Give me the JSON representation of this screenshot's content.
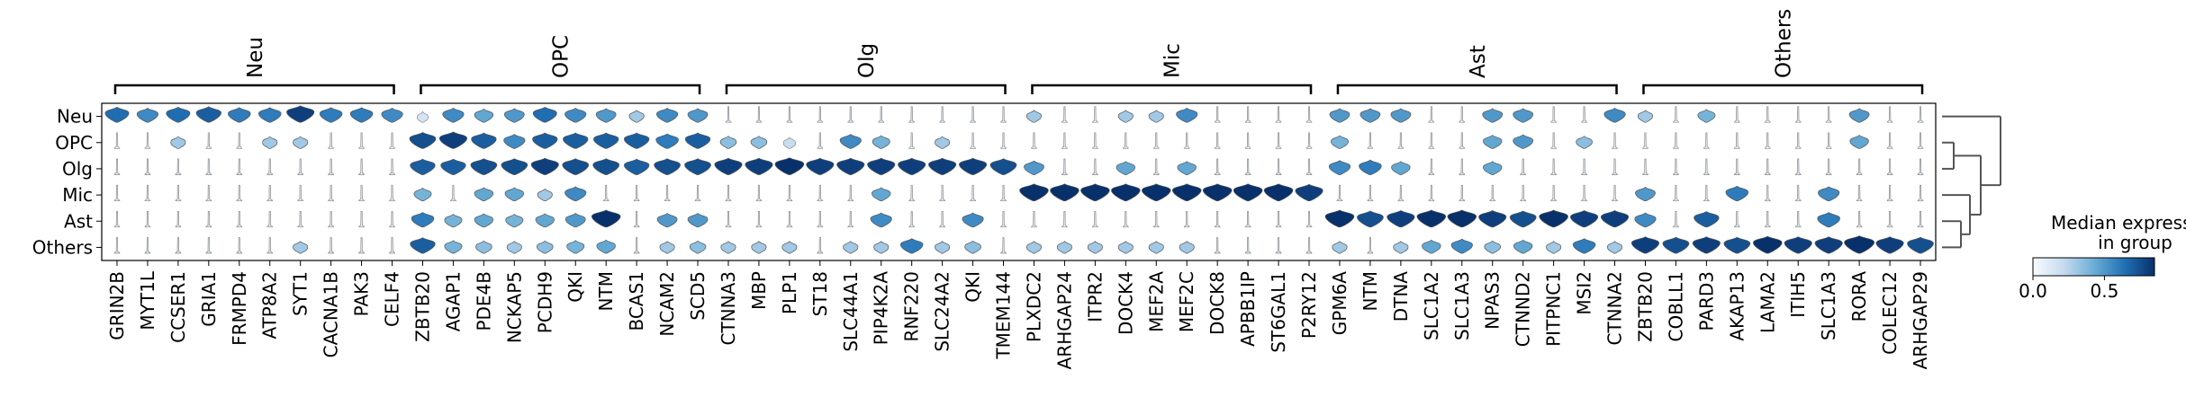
{
  "chart_data": {
    "type": "stacked violin plot",
    "row_labels": [
      "Neu",
      "OPC",
      "Olg",
      "Mic",
      "Ast",
      "Others"
    ],
    "groups": [
      {
        "name": "Neu",
        "genes": [
          "GRIN2B",
          "MYT1L",
          "CCSER1",
          "GRIA1",
          "FRMPD4",
          "ATP8A2",
          "SYT1",
          "CACNA1B",
          "PAK3",
          "CELF4"
        ]
      },
      {
        "name": "OPC",
        "genes": [
          "ZBTB20",
          "AGAP1",
          "PDE4B",
          "NCKAP5",
          "PCDH9",
          "QKI",
          "NTM",
          "BCAS1",
          "NCAM2",
          "SCD5"
        ]
      },
      {
        "name": "Olg",
        "genes": [
          "CTNNA3",
          "MBP",
          "PLP1",
          "ST18",
          "SLC44A1",
          "PIP4K2A",
          "RNF220",
          "SLC24A2",
          "QKI",
          "TMEM144"
        ]
      },
      {
        "name": "Mic",
        "genes": [
          "PLXDC2",
          "ARHGAP24",
          "ITPR2",
          "DOCK4",
          "MEF2A",
          "MEF2C",
          "DOCK8",
          "APBB1IP",
          "ST6GAL1",
          "P2RY12"
        ]
      },
      {
        "name": "Ast",
        "genes": [
          "GPM6A",
          "NTM",
          "DTNA",
          "SLC1A2",
          "SLC1A3",
          "NPAS3",
          "CTNND2",
          "PITPNC1",
          "MSI2",
          "CTNNA2"
        ]
      },
      {
        "name": "Others",
        "genes": [
          "ZBTB20",
          "COBLL1",
          "PARD3",
          "AKAP13",
          "LAMA2",
          "ITIH5",
          "SLC1A3",
          "RORA",
          "COLEC12",
          "ARHGAP29"
        ]
      }
    ],
    "median_expression": [
      [
        0.65,
        0.55,
        0.65,
        0.7,
        0.6,
        0.6,
        0.8,
        0.6,
        0.6,
        0.55,
        0.15,
        0.55,
        0.45,
        0.5,
        0.65,
        0.55,
        0.5,
        0.3,
        0.55,
        0.5,
        0.1,
        0.1,
        0.1,
        0.1,
        0.1,
        0.1,
        0.1,
        0.1,
        0.1,
        0.1,
        0.3,
        0.05,
        0.05,
        0.3,
        0.3,
        0.55,
        0.05,
        0.05,
        0.05,
        0.05,
        0.5,
        0.5,
        0.5,
        0.05,
        0.05,
        0.5,
        0.5,
        0.05,
        0.05,
        0.55,
        0.3,
        0.05,
        0.4,
        0.05,
        0.05,
        0.05,
        0.05,
        0.5,
        0.05,
        0.05
      ],
      [
        0.05,
        0.05,
        0.3,
        0.05,
        0.05,
        0.3,
        0.3,
        0.05,
        0.05,
        0.05,
        0.75,
        0.8,
        0.7,
        0.55,
        0.7,
        0.7,
        0.7,
        0.7,
        0.6,
        0.7,
        0.35,
        0.35,
        0.2,
        0.05,
        0.55,
        0.4,
        0.05,
        0.3,
        0.05,
        0.05,
        0.05,
        0.05,
        0.05,
        0.05,
        0.05,
        0.05,
        0.05,
        0.05,
        0.05,
        0.05,
        0.4,
        0.05,
        0.05,
        0.05,
        0.05,
        0.45,
        0.5,
        0.05,
        0.35,
        0.05,
        0.05,
        0.05,
        0.05,
        0.05,
        0.05,
        0.05,
        0.05,
        0.45,
        0.05,
        0.05
      ],
      [
        0.05,
        0.05,
        0.05,
        0.05,
        0.05,
        0.05,
        0.05,
        0.05,
        0.05,
        0.05,
        0.7,
        0.7,
        0.75,
        0.75,
        0.8,
        0.75,
        0.75,
        0.7,
        0.75,
        0.75,
        0.8,
        0.8,
        0.85,
        0.8,
        0.8,
        0.8,
        0.8,
        0.8,
        0.8,
        0.75,
        0.5,
        0.05,
        0.05,
        0.45,
        0.05,
        0.45,
        0.05,
        0.05,
        0.05,
        0.05,
        0.55,
        0.6,
        0.45,
        0.05,
        0.05,
        0.45,
        0.05,
        0.05,
        0.05,
        0.05,
        0.05,
        0.05,
        0.05,
        0.05,
        0.05,
        0.05,
        0.05,
        0.05,
        0.05,
        0.05
      ],
      [
        0.05,
        0.05,
        0.05,
        0.05,
        0.05,
        0.05,
        0.05,
        0.05,
        0.05,
        0.05,
        0.4,
        0.05,
        0.45,
        0.45,
        0.3,
        0.55,
        0.05,
        0.05,
        0.05,
        0.05,
        0.05,
        0.05,
        0.05,
        0.05,
        0.05,
        0.45,
        0.05,
        0.05,
        0.05,
        0.05,
        0.85,
        0.85,
        0.85,
        0.85,
        0.85,
        0.85,
        0.85,
        0.85,
        0.85,
        0.8,
        0.05,
        0.05,
        0.05,
        0.05,
        0.05,
        0.05,
        0.05,
        0.05,
        0.05,
        0.05,
        0.5,
        0.05,
        0.05,
        0.6,
        0.05,
        0.05,
        0.55,
        0.05,
        0.05,
        0.05
      ],
      [
        0.05,
        0.05,
        0.05,
        0.05,
        0.05,
        0.05,
        0.05,
        0.05,
        0.05,
        0.05,
        0.6,
        0.4,
        0.45,
        0.4,
        0.45,
        0.5,
        0.85,
        0.05,
        0.5,
        0.5,
        0.05,
        0.05,
        0.05,
        0.05,
        0.05,
        0.55,
        0.05,
        0.05,
        0.55,
        0.05,
        0.05,
        0.05,
        0.05,
        0.05,
        0.05,
        0.05,
        0.05,
        0.05,
        0.05,
        0.05,
        0.85,
        0.75,
        0.8,
        0.85,
        0.85,
        0.8,
        0.75,
        0.85,
        0.8,
        0.8,
        0.55,
        0.05,
        0.7,
        0.05,
        0.05,
        0.05,
        0.6,
        0.05,
        0.05,
        0.05
      ],
      [
        0.05,
        0.05,
        0.05,
        0.05,
        0.05,
        0.05,
        0.3,
        0.05,
        0.05,
        0.05,
        0.7,
        0.4,
        0.35,
        0.3,
        0.35,
        0.4,
        0.45,
        0.05,
        0.3,
        0.35,
        0.3,
        0.3,
        0.3,
        0.05,
        0.3,
        0.3,
        0.6,
        0.3,
        0.35,
        0.05,
        0.3,
        0.3,
        0.3,
        0.3,
        0.3,
        0.3,
        0.05,
        0.05,
        0.05,
        0.05,
        0.3,
        0.05,
        0.3,
        0.45,
        0.55,
        0.35,
        0.45,
        0.3,
        0.6,
        0.3,
        0.8,
        0.75,
        0.8,
        0.75,
        0.85,
        0.8,
        0.8,
        0.9,
        0.8,
        0.75
      ]
    ],
    "colorbar": {
      "label_line1": "Median expression",
      "label_line2": "in group",
      "ticks": [
        "0.0",
        "0.5"
      ],
      "range": [
        0,
        0.85
      ],
      "colormap": [
        "#f7fbff",
        "#c6dbef",
        "#6baed6",
        "#2171b5",
        "#08306b"
      ]
    },
    "dendrogram": "right-side, rows (Neu,(OPC,Olg),(Mic,(Ast,Others)))"
  }
}
